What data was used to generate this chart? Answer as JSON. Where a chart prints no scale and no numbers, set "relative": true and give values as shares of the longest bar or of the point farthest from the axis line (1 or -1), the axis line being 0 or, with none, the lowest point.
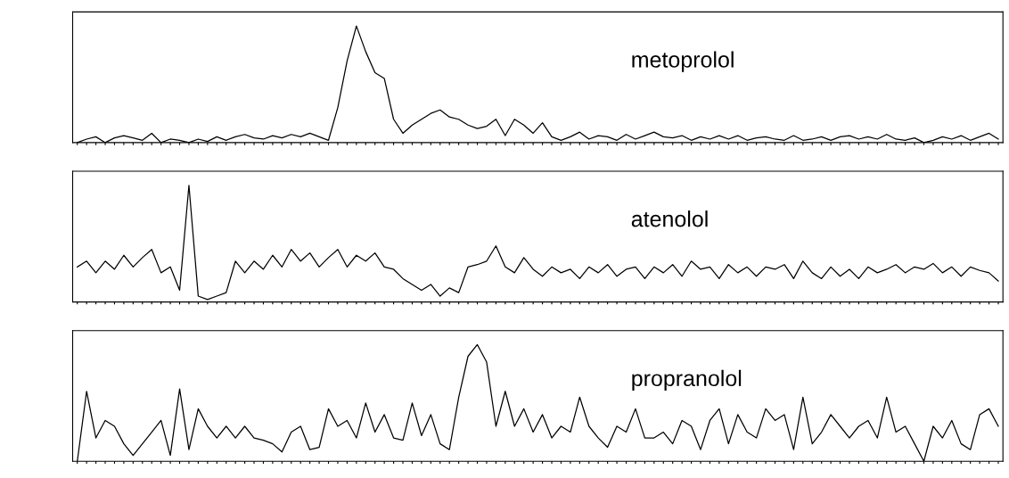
{
  "chart_data": [
    {
      "type": "line",
      "relative": true,
      "categories": [
        null,
        null,
        null,
        null,
        null,
        null,
        null,
        null,
        null,
        null,
        null,
        null,
        null,
        null,
        null,
        null,
        null,
        null,
        null,
        null,
        null,
        null,
        null,
        null,
        null,
        null,
        null,
        null,
        null,
        null,
        null,
        null,
        null,
        null,
        null,
        null,
        null,
        null,
        null,
        null,
        null,
        null,
        null,
        null,
        null,
        null,
        null,
        null,
        null,
        null,
        null,
        null,
        null,
        null,
        null,
        null,
        null,
        null,
        null,
        null,
        null,
        null,
        null,
        null,
        null,
        null,
        null,
        null,
        null,
        null,
        null,
        null,
        null,
        null,
        null,
        null,
        null,
        null,
        null,
        null,
        null,
        null,
        null,
        null,
        null,
        null,
        null,
        null,
        null,
        null,
        null,
        null,
        null,
        null,
        null,
        null,
        null,
        null,
        null,
        null
      ],
      "annotations": [
        "metoprolol"
      ],
      "series": [
        {
          "color": "#000000",
          "values": [
            0,
            0.03,
            0.05,
            0,
            0.04,
            0.06,
            0.04,
            0.02,
            0.08,
            0,
            0.03,
            0.02,
            0,
            0.03,
            0.01,
            0.05,
            0.02,
            0.05,
            0.07,
            0.04,
            0.03,
            0.06,
            0.04,
            0.07,
            0.05,
            0.08,
            0.05,
            0.02,
            0.3,
            0.7,
            1.0,
            0.78,
            0.6,
            0.55,
            0.2,
            0.08,
            0.15,
            0.2,
            0.25,
            0.28,
            0.22,
            0.2,
            0.15,
            0.12,
            0.14,
            0.2,
            0.06,
            0.2,
            0.15,
            0.08,
            0.17,
            0.05,
            0.02,
            0.05,
            0.09,
            0.03,
            0.06,
            0.05,
            0.02,
            0.07,
            0.03,
            0.06,
            0.09,
            0.05,
            0.04,
            0.06,
            0.02,
            0.05,
            0.03,
            0.06,
            0.03,
            0.06,
            0.02,
            0.04,
            0.05,
            0.03,
            0.02,
            0.06,
            0.02,
            0.03,
            0.05,
            0.02,
            0.05,
            0.06,
            0.03,
            0.05,
            0.03,
            0.07,
            0.03,
            0.02,
            0.04,
            0,
            0.02,
            0.05,
            0.03,
            0.06,
            0.02,
            0.05,
            0.08,
            0.03
          ]
        }
      ]
    },
    {
      "type": "line",
      "relative": true,
      "categories": [
        null,
        null,
        null,
        null,
        null,
        null,
        null,
        null,
        null,
        null,
        null,
        null,
        null,
        null,
        null,
        null,
        null,
        null,
        null,
        null,
        null,
        null,
        null,
        null,
        null,
        null,
        null,
        null,
        null,
        null,
        null,
        null,
        null,
        null,
        null,
        null,
        null,
        null,
        null,
        null,
        null,
        null,
        null,
        null,
        null,
        null,
        null,
        null,
        null,
        null,
        null,
        null,
        null,
        null,
        null,
        null,
        null,
        null,
        null,
        null,
        null,
        null,
        null,
        null,
        null,
        null,
        null,
        null,
        null,
        null,
        null,
        null,
        null,
        null,
        null,
        null,
        null,
        null,
        null,
        null,
        null,
        null,
        null,
        null,
        null,
        null,
        null,
        null,
        null,
        null,
        null,
        null,
        null,
        null,
        null,
        null,
        null,
        null,
        null,
        null
      ],
      "annotations": [
        "atenolol"
      ],
      "series": [
        {
          "color": "#000000",
          "values": [
            0.3,
            0.35,
            0.25,
            0.35,
            0.28,
            0.4,
            0.3,
            0.38,
            0.45,
            0.25,
            0.3,
            0.1,
            1.0,
            0.05,
            0.02,
            0.05,
            0.08,
            0.35,
            0.25,
            0.35,
            0.28,
            0.4,
            0.3,
            0.45,
            0.35,
            0.42,
            0.3,
            0.38,
            0.45,
            0.3,
            0.4,
            0.35,
            0.42,
            0.3,
            0.28,
            0.2,
            0.15,
            0.1,
            0.15,
            0.05,
            0.12,
            0.08,
            0.3,
            0.32,
            0.35,
            0.48,
            0.3,
            0.25,
            0.38,
            0.28,
            0.22,
            0.3,
            0.25,
            0.28,
            0.2,
            0.3,
            0.25,
            0.32,
            0.22,
            0.28,
            0.3,
            0.2,
            0.3,
            0.25,
            0.32,
            0.22,
            0.35,
            0.28,
            0.3,
            0.2,
            0.32,
            0.25,
            0.3,
            0.22,
            0.3,
            0.28,
            0.32,
            0.2,
            0.35,
            0.25,
            0.2,
            0.3,
            0.22,
            0.28,
            0.2,
            0.3,
            0.25,
            0.28,
            0.32,
            0.25,
            0.3,
            0.28,
            0.33,
            0.25,
            0.3,
            0.22,
            0.3,
            0.27,
            0.25,
            0.18
          ]
        }
      ]
    },
    {
      "type": "line",
      "relative": true,
      "categories": [
        null,
        null,
        null,
        null,
        null,
        null,
        null,
        null,
        null,
        null,
        null,
        null,
        null,
        null,
        null,
        null,
        null,
        null,
        null,
        null,
        null,
        null,
        null,
        null,
        null,
        null,
        null,
        null,
        null,
        null,
        null,
        null,
        null,
        null,
        null,
        null,
        null,
        null,
        null,
        null,
        null,
        null,
        null,
        null,
        null,
        null,
        null,
        null,
        null,
        null,
        null,
        null,
        null,
        null,
        null,
        null,
        null,
        null,
        null,
        null,
        null,
        null,
        null,
        null,
        null,
        null,
        null,
        null,
        null,
        null,
        null,
        null,
        null,
        null,
        null,
        null,
        null,
        null,
        null,
        null,
        null,
        null,
        null,
        null,
        null,
        null,
        null,
        null,
        null,
        null,
        null,
        null,
        null,
        null,
        null,
        null,
        null,
        null,
        null,
        null
      ],
      "annotations": [
        "propranolol"
      ],
      "series": [
        {
          "color": "#000000",
          "values": [
            0,
            0.6,
            0.2,
            0.35,
            0.3,
            0.15,
            0.05,
            0.15,
            0.25,
            0.35,
            0.05,
            0.62,
            0.1,
            0.45,
            0.3,
            0.2,
            0.3,
            0.2,
            0.3,
            0.2,
            0.18,
            0.15,
            0.08,
            0.25,
            0.3,
            0.1,
            0.12,
            0.45,
            0.3,
            0.35,
            0.2,
            0.5,
            0.25,
            0.4,
            0.2,
            0.18,
            0.5,
            0.22,
            0.4,
            0.15,
            0.1,
            0.55,
            0.9,
            1.0,
            0.85,
            0.3,
            0.6,
            0.3,
            0.45,
            0.25,
            0.4,
            0.2,
            0.3,
            0.25,
            0.55,
            0.3,
            0.2,
            0.12,
            0.3,
            0.25,
            0.45,
            0.2,
            0.2,
            0.25,
            0.15,
            0.35,
            0.3,
            0.1,
            0.35,
            0.45,
            0.15,
            0.4,
            0.25,
            0.2,
            0.45,
            0.35,
            0.4,
            0.1,
            0.55,
            0.15,
            0.25,
            0.4,
            0.3,
            0.2,
            0.3,
            0.35,
            0.2,
            0.55,
            0.25,
            0.3,
            0.15,
            0.0,
            0.3,
            0.2,
            0.35,
            0.15,
            0.1,
            0.4,
            0.45,
            0.3
          ]
        }
      ]
    }
  ]
}
